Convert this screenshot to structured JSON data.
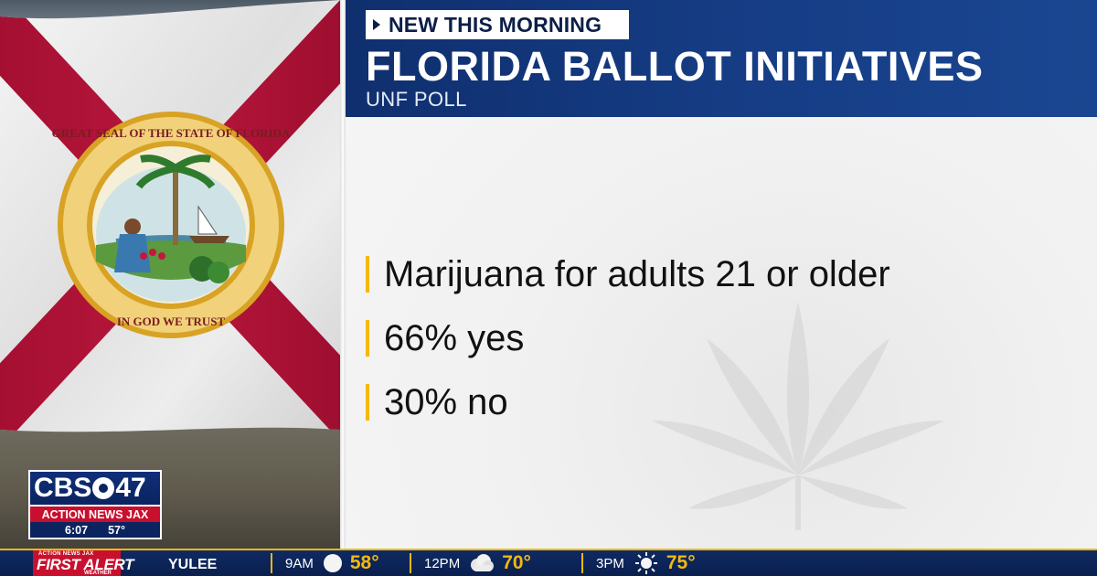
{
  "graphic": {
    "kicker": "NEW THIS MORNING",
    "headline": "FLORIDA BALLOT INITIATIVES",
    "subhead": "UNF POLL",
    "bullets": [
      {
        "text": "Marijuana for adults 21 or older"
      },
      {
        "text": "66% yes"
      },
      {
        "text": "30% no"
      }
    ],
    "colors": {
      "header": "#163d86",
      "accent": "#f2b90f",
      "text": "#111111"
    }
  },
  "flag": {
    "seal_top_text": "GREAT SEAL OF THE STATE OF FLORIDA",
    "seal_bottom_text": "IN GOD WE TRUST",
    "colors": {
      "cross": "#b8143a",
      "field": "#f2f2f2",
      "seal_gold": "#d8a325"
    }
  },
  "station_bug": {
    "call_letters_left": "CBS",
    "call_letters_right": "47",
    "network_name": "ACTION NEWS JAX",
    "time": "6:07",
    "temperature": "57°"
  },
  "ticker": {
    "brand_small": "ACTION NEWS JAX",
    "brand_main": "FIRST ALERT",
    "brand_bottom": "WEATHER",
    "location": "YULEE",
    "forecast": [
      {
        "time": "9AM",
        "icon": "clear-night-icon",
        "temp": "58°"
      },
      {
        "time": "12PM",
        "icon": "cloud-icon",
        "temp": "70°"
      },
      {
        "time": "3PM",
        "icon": "sun-icon",
        "temp": "75°"
      }
    ]
  }
}
